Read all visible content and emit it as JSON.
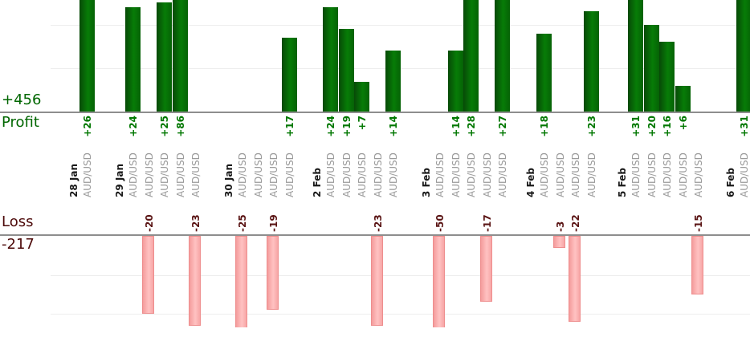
{
  "chart_data": {
    "type": "bar",
    "subtype": "profit-loss-split-timeline",
    "instrument": "AUD/USD",
    "profit_section": {
      "total_label": "+456",
      "axis_label": "Profit",
      "text_color": "#006600",
      "bar_value_color": "#007700",
      "bar_color": "#076e07"
    },
    "loss_section": {
      "total_label": "-217",
      "axis_label": "Loss",
      "text_color": "#4d0a0a",
      "bar_value_color": "#5a1414",
      "bar_color": "#f9a8a8",
      "bar_border_color": "#ee8e8e"
    },
    "axes": {
      "gridline_step": 10,
      "gridline_color": "#ededed",
      "baseline_color": "#8e8e8e"
    },
    "text_colors": {
      "date": "#1a1a1a",
      "symbol": "#9a9a9a"
    },
    "groups": [
      {
        "date": "28 Jan",
        "trades": [
          {
            "symbol": "AUD/USD",
            "value": 26
          }
        ]
      },
      {
        "date": "29 Jan",
        "trades": [
          {
            "symbol": "AUD/USD",
            "value": 24
          },
          {
            "symbol": "AUD/USD",
            "value": -20
          },
          {
            "symbol": "AUD/USD",
            "value": 25
          },
          {
            "symbol": "AUD/USD",
            "value": 86
          },
          {
            "symbol": "AUD/USD",
            "value": -23
          }
        ]
      },
      {
        "date": "30 Jan",
        "trades": [
          {
            "symbol": "AUD/USD",
            "value": -25
          },
          {
            "symbol": "AUD/USD",
            "value": 0
          },
          {
            "symbol": "AUD/USD",
            "value": -19
          },
          {
            "symbol": "AUD/USD",
            "value": 17
          }
        ]
      },
      {
        "date": "2 Feb",
        "trades": [
          {
            "symbol": "AUD/USD",
            "value": 24
          },
          {
            "symbol": "AUD/USD",
            "value": 19
          },
          {
            "symbol": "AUD/USD",
            "value": 7
          },
          {
            "symbol": "AUD/USD",
            "value": -23
          },
          {
            "symbol": "AUD/USD",
            "value": 14
          }
        ]
      },
      {
        "date": "3 Feb",
        "trades": [
          {
            "symbol": "AUD/USD",
            "value": -50
          },
          {
            "symbol": "AUD/USD",
            "value": 14
          },
          {
            "symbol": "AUD/USD",
            "value": 28
          },
          {
            "symbol": "AUD/USD",
            "value": -17
          },
          {
            "symbol": "AUD/USD",
            "value": 27
          }
        ]
      },
      {
        "date": "4 Feb",
        "trades": [
          {
            "symbol": "AUD/USD",
            "value": 18
          },
          {
            "symbol": "AUD/USD",
            "value": -3
          },
          {
            "symbol": "AUD/USD",
            "value": -22
          },
          {
            "symbol": "AUD/USD",
            "value": 23
          }
        ]
      },
      {
        "date": "5 Feb",
        "trades": [
          {
            "symbol": "AUD/USD",
            "value": 31
          },
          {
            "symbol": "AUD/USD",
            "value": 20
          },
          {
            "symbol": "AUD/USD",
            "value": 16
          },
          {
            "symbol": "AUD/USD",
            "value": 6
          },
          {
            "symbol": "AUD/USD",
            "value": -15
          }
        ]
      },
      {
        "date": "6 Feb",
        "trades": [
          {
            "symbol": "AUD/USD",
            "value": 31
          }
        ]
      }
    ]
  }
}
